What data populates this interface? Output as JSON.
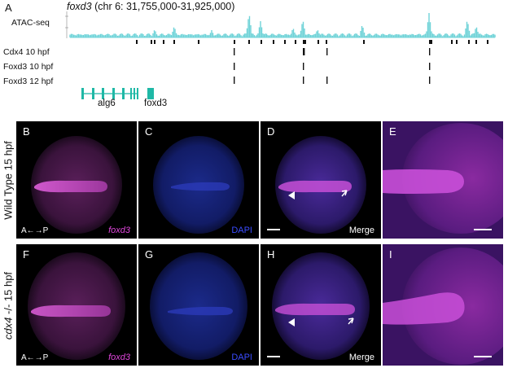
{
  "panel_a": {
    "letter": "A",
    "title_gene": "foxd3",
    "title_coords": "(chr 6: 31,755,000-31,925,000)",
    "tracks": [
      "ATAC-seq",
      "Cdx4 10 hpf",
      "Foxd3 10 hpf",
      "Foxd3 12 hpf"
    ],
    "genes": [
      "alg6",
      "foxd3"
    ],
    "colors": {
      "atac": "#6fd3d8",
      "gene_model": "#1fb8a6"
    }
  },
  "panels": [
    {
      "id": "B",
      "stain": "foxd3",
      "axis": "A←→P",
      "merge": ""
    },
    {
      "id": "C",
      "stain": "DAPI",
      "axis": "",
      "merge": ""
    },
    {
      "id": "D",
      "stain": "",
      "axis": "",
      "merge": "Merge"
    },
    {
      "id": "E",
      "stain": "",
      "axis": "",
      "merge": ""
    },
    {
      "id": "F",
      "stain": "foxd3",
      "axis": "A←→P",
      "merge": ""
    },
    {
      "id": "G",
      "stain": "DAPI",
      "axis": "",
      "merge": ""
    },
    {
      "id": "H",
      "stain": "",
      "axis": "",
      "merge": "Merge"
    },
    {
      "id": "I",
      "stain": "",
      "axis": "",
      "merge": ""
    }
  ],
  "row_labels": {
    "top": "Wild Type 15 hpf",
    "bottom_ital": "cdx4",
    "bottom_rest": " -/- 15 hpf"
  },
  "colors": {
    "magenta": "#d63ad0",
    "blue": "#3a4cff"
  }
}
